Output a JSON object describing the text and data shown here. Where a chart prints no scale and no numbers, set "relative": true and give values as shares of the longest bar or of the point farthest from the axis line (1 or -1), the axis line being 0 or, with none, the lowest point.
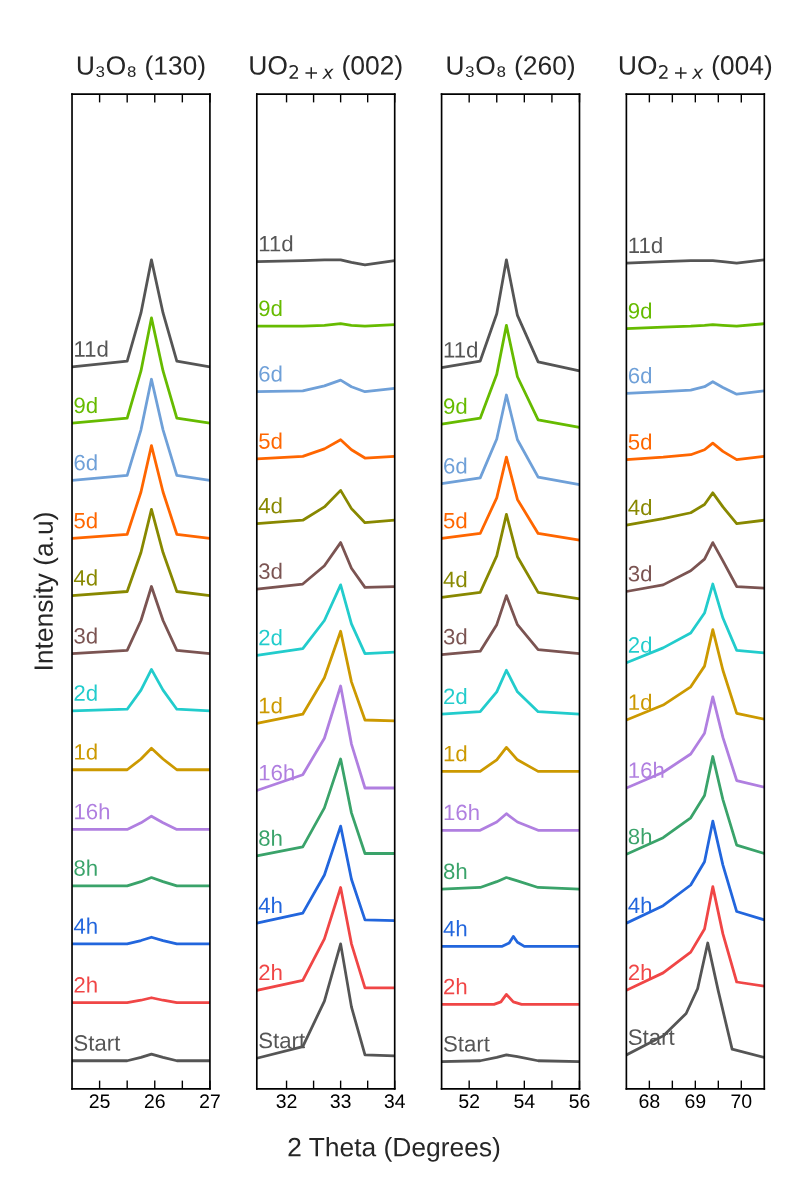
{
  "chart_data": [
    {
      "type": "line",
      "title": "U₃O₈ (130)",
      "xlabel": "2 Theta (Degrees)",
      "ylabel": "Intensity (a.u)",
      "relative": true,
      "tick_labels": "x",
      "legend": false,
      "grid": false,
      "xlim": [
        24.5,
        27
      ],
      "xticks": [
        25,
        {
          "value": 25.5,
          "label": null
        },
        26,
        {
          "value": 26.5,
          "label": null
        },
        27
      ],
      "x": [
        24.5,
        25.5,
        25.75,
        25.94,
        26.15,
        26.4,
        27
      ],
      "series": [
        {
          "name": "Start",
          "color": "#555555",
          "values": [
            0.034,
            0.034,
            0.038,
            0.042,
            0.038,
            0.034,
            0.034
          ]
        },
        {
          "name": "2h",
          "color": "#f04646",
          "values": [
            0.104,
            0.104,
            0.107,
            0.11,
            0.107,
            0.104,
            0.104
          ]
        },
        {
          "name": "4h",
          "color": "#2266dd",
          "values": [
            0.175,
            0.175,
            0.179,
            0.183,
            0.179,
            0.175,
            0.175
          ]
        },
        {
          "name": "8h",
          "color": "#3aa36a",
          "values": [
            0.245,
            0.245,
            0.25,
            0.255,
            0.25,
            0.245,
            0.245
          ]
        },
        {
          "name": "16h",
          "color": "#b07fe0",
          "values": [
            0.313,
            0.313,
            0.321,
            0.329,
            0.321,
            0.313,
            0.313
          ]
        },
        {
          "name": "1d",
          "color": "#cc9900",
          "values": [
            0.385,
            0.385,
            0.398,
            0.411,
            0.398,
            0.385,
            0.385
          ]
        },
        {
          "name": "2d",
          "color": "#22cccc",
          "values": [
            0.456,
            0.458,
            0.481,
            0.506,
            0.481,
            0.458,
            0.456
          ]
        },
        {
          "name": "3d",
          "color": "#7b5452",
          "values": [
            0.525,
            0.529,
            0.565,
            0.606,
            0.565,
            0.529,
            0.525
          ]
        },
        {
          "name": "4d",
          "color": "#888800",
          "values": [
            0.595,
            0.6,
            0.647,
            0.699,
            0.647,
            0.6,
            0.595
          ]
        },
        {
          "name": "5d",
          "color": "#ff6600",
          "values": [
            0.664,
            0.669,
            0.72,
            0.776,
            0.72,
            0.669,
            0.664
          ]
        },
        {
          "name": "6d",
          "color": "#6fa0d8",
          "values": [
            0.734,
            0.74,
            0.795,
            0.856,
            0.795,
            0.74,
            0.734
          ]
        },
        {
          "name": "9d",
          "color": "#66bb00",
          "values": [
            0.803,
            0.809,
            0.866,
            0.93,
            0.866,
            0.809,
            0.803
          ]
        },
        {
          "name": "11d",
          "color": "#555555",
          "values": [
            0.871,
            0.878,
            0.936,
            1.0,
            0.936,
            0.878,
            0.871
          ]
        }
      ]
    },
    {
      "type": "line",
      "title": "UO$_{2+x}$ (002)",
      "relative": true,
      "tick_labels": "x",
      "legend": false,
      "grid": false,
      "xlim": [
        31.45,
        34
      ],
      "xticks": [
        32,
        {
          "value": 32.5,
          "label": null
        },
        33,
        {
          "value": 33.5,
          "label": null
        },
        34
      ],
      "x": [
        31.45,
        32.3,
        32.7,
        33.0,
        33.2,
        33.45,
        34
      ],
      "series": [
        {
          "name": "Start",
          "color": "#555555",
          "values": [
            0.037,
            0.051,
            0.106,
            0.175,
            0.099,
            0.041,
            0.04
          ]
        },
        {
          "name": "2h",
          "color": "#f04646",
          "values": [
            0.119,
            0.131,
            0.181,
            0.243,
            0.175,
            0.122,
            0.122
          ]
        },
        {
          "name": "4h",
          "color": "#2266dd",
          "values": [
            0.2,
            0.212,
            0.258,
            0.317,
            0.253,
            0.204,
            0.203
          ]
        },
        {
          "name": "8h",
          "color": "#3aa36a",
          "values": [
            0.281,
            0.292,
            0.339,
            0.398,
            0.333,
            0.284,
            0.284
          ]
        },
        {
          "name": "16h",
          "color": "#b07fe0",
          "values": [
            0.36,
            0.379,
            0.423,
            0.486,
            0.416,
            0.363,
            0.363
          ]
        },
        {
          "name": "1d",
          "color": "#cc9900",
          "values": [
            0.441,
            0.452,
            0.496,
            0.552,
            0.491,
            0.445,
            0.444
          ]
        },
        {
          "name": "2d",
          "color": "#22cccc",
          "values": [
            0.523,
            0.531,
            0.565,
            0.608,
            0.561,
            0.525,
            0.527
          ]
        },
        {
          "name": "3d",
          "color": "#7b5452",
          "values": [
            0.603,
            0.609,
            0.631,
            0.659,
            0.628,
            0.605,
            0.606
          ]
        },
        {
          "name": "4d",
          "color": "#888800",
          "values": [
            0.682,
            0.686,
            0.702,
            0.722,
            0.7,
            0.683,
            0.686
          ]
        },
        {
          "name": "5d",
          "color": "#ff6600",
          "values": [
            0.76,
            0.763,
            0.772,
            0.783,
            0.771,
            0.761,
            0.763
          ]
        },
        {
          "name": "6d",
          "color": "#6fa0d8",
          "values": [
            0.841,
            0.842,
            0.848,
            0.855,
            0.847,
            0.841,
            0.845
          ]
        },
        {
          "name": "9d",
          "color": "#66bb00",
          "values": [
            0.92,
            0.92,
            0.921,
            0.923,
            0.921,
            0.92,
            0.922
          ]
        },
        {
          "name": "11d",
          "color": "#555555",
          "values": [
            0.998,
            0.999,
            1.0,
            1.0,
            0.997,
            0.994,
            0.999
          ]
        }
      ]
    },
    {
      "type": "line",
      "title": "U₃O₈ (260)",
      "relative": true,
      "tick_labels": "x",
      "legend": false,
      "grid": false,
      "xlim": [
        51,
        56
      ],
      "xticks": [
        52,
        {
          "value": 53,
          "label": null
        },
        54,
        {
          "value": 55,
          "label": null
        },
        56
      ],
      "x": [
        51,
        52.4,
        53.0,
        53.35,
        53.75,
        54.5,
        56
      ],
      "series": [
        {
          "name": "Start",
          "color": "#555555",
          "values": [
            0.033,
            0.034,
            0.038,
            0.041,
            0.039,
            0.034,
            0.033
          ]
        },
        {
          "name": "2h",
          "color": "#f04646",
          "x": [
            51,
            52.9,
            53.15,
            53.35,
            53.6,
            53.9,
            56
          ],
          "values": [
            0.102,
            0.102,
            0.105,
            0.114,
            0.105,
            0.102,
            0.102
          ]
        },
        {
          "name": "4h",
          "color": "#2266dd",
          "x": [
            51,
            53.2,
            53.45,
            53.6,
            53.75,
            54.0,
            56
          ],
          "values": [
            0.172,
            0.172,
            0.176,
            0.184,
            0.177,
            0.172,
            0.172
          ]
        },
        {
          "name": "8h",
          "color": "#3aa36a",
          "values": [
            0.241,
            0.243,
            0.25,
            0.255,
            0.251,
            0.243,
            0.241
          ]
        },
        {
          "name": "16h",
          "color": "#b07fe0",
          "values": [
            0.312,
            0.312,
            0.322,
            0.332,
            0.322,
            0.312,
            0.312
          ]
        },
        {
          "name": "1d",
          "color": "#cc9900",
          "values": [
            0.383,
            0.383,
            0.397,
            0.412,
            0.397,
            0.383,
            0.383
          ]
        },
        {
          "name": "2d",
          "color": "#22cccc",
          "values": [
            0.452,
            0.455,
            0.479,
            0.505,
            0.479,
            0.455,
            0.452
          ]
        },
        {
          "name": "3d",
          "color": "#7b5452",
          "values": [
            0.524,
            0.528,
            0.56,
            0.595,
            0.56,
            0.53,
            0.525
          ]
        },
        {
          "name": "4d",
          "color": "#888800",
          "values": [
            0.593,
            0.599,
            0.643,
            0.693,
            0.642,
            0.599,
            0.591
          ]
        },
        {
          "name": "5d",
          "color": "#ff6600",
          "values": [
            0.664,
            0.67,
            0.713,
            0.762,
            0.711,
            0.67,
            0.662
          ]
        },
        {
          "name": "6d",
          "color": "#6fa0d8",
          "values": [
            0.73,
            0.737,
            0.784,
            0.837,
            0.783,
            0.738,
            0.729
          ]
        },
        {
          "name": "9d",
          "color": "#66bb00",
          "values": [
            0.802,
            0.809,
            0.862,
            0.921,
            0.859,
            0.807,
            0.798
          ]
        },
        {
          "name": "11d",
          "color": "#555555",
          "values": [
            0.87,
            0.878,
            0.935,
            1.0,
            0.933,
            0.877,
            0.866
          ]
        }
      ]
    },
    {
      "type": "line",
      "title": "UO$_{2+x}$ (004)",
      "relative": true,
      "tick_labels": "x",
      "legend": false,
      "grid": false,
      "xlim": [
        67.5,
        70.5
      ],
      "xticks": [
        68,
        {
          "value": 68.5,
          "label": null
        },
        69,
        {
          "value": 69.5,
          "label": null
        },
        70
      ],
      "x": [
        67.5,
        68.3,
        68.9,
        69.2,
        69.38,
        69.6,
        69.9,
        70.5
      ],
      "series": [
        {
          "name": "Start",
          "color": "#555555",
          "x": [
            67.5,
            68.3,
            68.8,
            69.05,
            69.27,
            69.5,
            69.8,
            70.5
          ],
          "values": [
            0.041,
            0.064,
            0.091,
            0.121,
            0.176,
            0.118,
            0.048,
            0.038
          ]
        },
        {
          "name": "2h",
          "color": "#f04646",
          "values": [
            0.119,
            0.14,
            0.165,
            0.193,
            0.244,
            0.187,
            0.129,
            0.124
          ]
        },
        {
          "name": "4h",
          "color": "#2266dd",
          "values": [
            0.2,
            0.221,
            0.246,
            0.274,
            0.323,
            0.27,
            0.214,
            0.204
          ]
        },
        {
          "name": "8h",
          "color": "#3aa36a",
          "values": [
            0.283,
            0.303,
            0.327,
            0.354,
            0.401,
            0.349,
            0.294,
            0.284
          ]
        },
        {
          "name": "16h",
          "color": "#b07fe0",
          "values": [
            0.363,
            0.382,
            0.404,
            0.429,
            0.473,
            0.424,
            0.372,
            0.364
          ]
        },
        {
          "name": "1d",
          "color": "#cc9900",
          "values": [
            0.445,
            0.463,
            0.485,
            0.51,
            0.554,
            0.505,
            0.453,
            0.446
          ]
        },
        {
          "name": "2d",
          "color": "#22cccc",
          "values": [
            0.514,
            0.532,
            0.55,
            0.574,
            0.609,
            0.568,
            0.529,
            0.526
          ]
        },
        {
          "name": "3d",
          "color": "#7b5452",
          "values": [
            0.6,
            0.608,
            0.625,
            0.639,
            0.659,
            0.637,
            0.606,
            0.604
          ]
        },
        {
          "name": "4d",
          "color": "#888800",
          "values": [
            0.68,
            0.688,
            0.695,
            0.705,
            0.719,
            0.702,
            0.682,
            0.686
          ]
        },
        {
          "name": "5d",
          "color": "#ff6600",
          "values": [
            0.759,
            0.762,
            0.765,
            0.771,
            0.779,
            0.769,
            0.759,
            0.763
          ]
        },
        {
          "name": "6d",
          "color": "#6fa0d8",
          "values": [
            0.839,
            0.841,
            0.843,
            0.847,
            0.853,
            0.846,
            0.838,
            0.842
          ]
        },
        {
          "name": "9d",
          "color": "#66bb00",
          "values": [
            0.917,
            0.919,
            0.92,
            0.921,
            0.922,
            0.921,
            0.92,
            0.923
          ]
        },
        {
          "name": "11d",
          "color": "#555555",
          "values": [
            0.996,
            0.998,
            0.999,
            0.999,
            0.999,
            0.998,
            0.996,
            1.0
          ]
        }
      ]
    }
  ]
}
